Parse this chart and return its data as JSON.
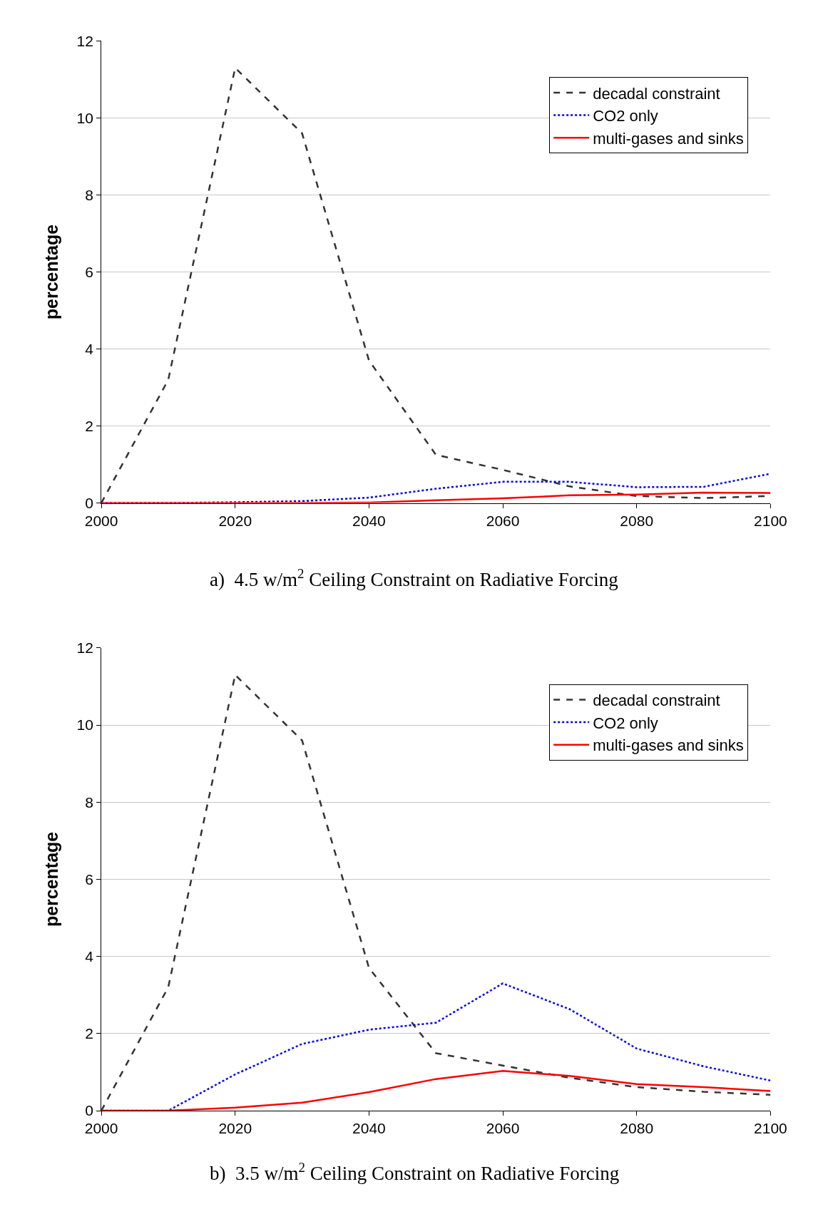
{
  "chart_data": [
    {
      "type": "line",
      "title": "a)  4.5 w/m$^{2}$ Ceiling Constraint on Radiative Forcing",
      "ylabel": "percentage",
      "x": [
        2000,
        2010,
        2020,
        2030,
        2040,
        2050,
        2060,
        2070,
        2080,
        2090,
        2100
      ],
      "series": [
        {
          "name": "decadal constraint",
          "color": "#333333",
          "line_style": "dashed",
          "values": [
            0,
            3.2,
            11.3,
            9.6,
            3.7,
            1.25,
            0.86,
            0.43,
            0.18,
            0.13,
            0.18
          ]
        },
        {
          "name": "CO2 only",
          "color": "#0000ff",
          "line_style": "dotted",
          "values": [
            0,
            0,
            0.02,
            0.05,
            0.14,
            0.37,
            0.55,
            0.55,
            0.41,
            0.42,
            0.76
          ]
        },
        {
          "name": "multi-gases and sinks",
          "color": "#ff0000",
          "line_style": "solid",
          "values": [
            0,
            0,
            0,
            0,
            0.01,
            0.07,
            0.12,
            0.2,
            0.22,
            0.27,
            0.26
          ]
        }
      ],
      "xlim": [
        2000,
        2100
      ],
      "xticks": [
        2000,
        2020,
        2040,
        2060,
        2080,
        2100
      ],
      "ylim": [
        0,
        12
      ],
      "yticks": [
        0,
        2,
        4,
        6,
        8,
        10,
        12
      ],
      "grid": "y",
      "legend": "top right",
      "marker": "none"
    },
    {
      "type": "line",
      "title": "b)  3.5 w/m$^{2}$ Ceiling Constraint on Radiative Forcing",
      "ylabel": "percentage",
      "x": [
        2000,
        2010,
        2020,
        2030,
        2040,
        2050,
        2060,
        2070,
        2080,
        2090,
        2100
      ],
      "series": [
        {
          "name": "decadal constraint",
          "color": "#333333",
          "line_style": "dashed",
          "values": [
            0,
            3.2,
            11.3,
            9.6,
            3.7,
            1.49,
            1.17,
            0.85,
            0.61,
            0.49,
            0.41
          ]
        },
        {
          "name": "CO2 only",
          "color": "#0000ff",
          "line_style": "dotted",
          "values": [
            0,
            0,
            0.94,
            1.73,
            2.1,
            2.28,
            3.3,
            2.63,
            1.61,
            1.15,
            0.78
          ]
        },
        {
          "name": "multi-gases and sinks",
          "color": "#ff0000",
          "line_style": "solid",
          "values": [
            0,
            0,
            0.08,
            0.21,
            0.48,
            0.82,
            1.03,
            0.9,
            0.69,
            0.61,
            0.51
          ]
        }
      ],
      "xlim": [
        2000,
        2100
      ],
      "xticks": [
        2000,
        2020,
        2040,
        2060,
        2080,
        2100
      ],
      "ylim": [
        0,
        12
      ],
      "yticks": [
        0,
        2,
        4,
        6,
        8,
        10,
        12
      ],
      "grid": "y",
      "legend": "top right",
      "marker": "none"
    }
  ]
}
